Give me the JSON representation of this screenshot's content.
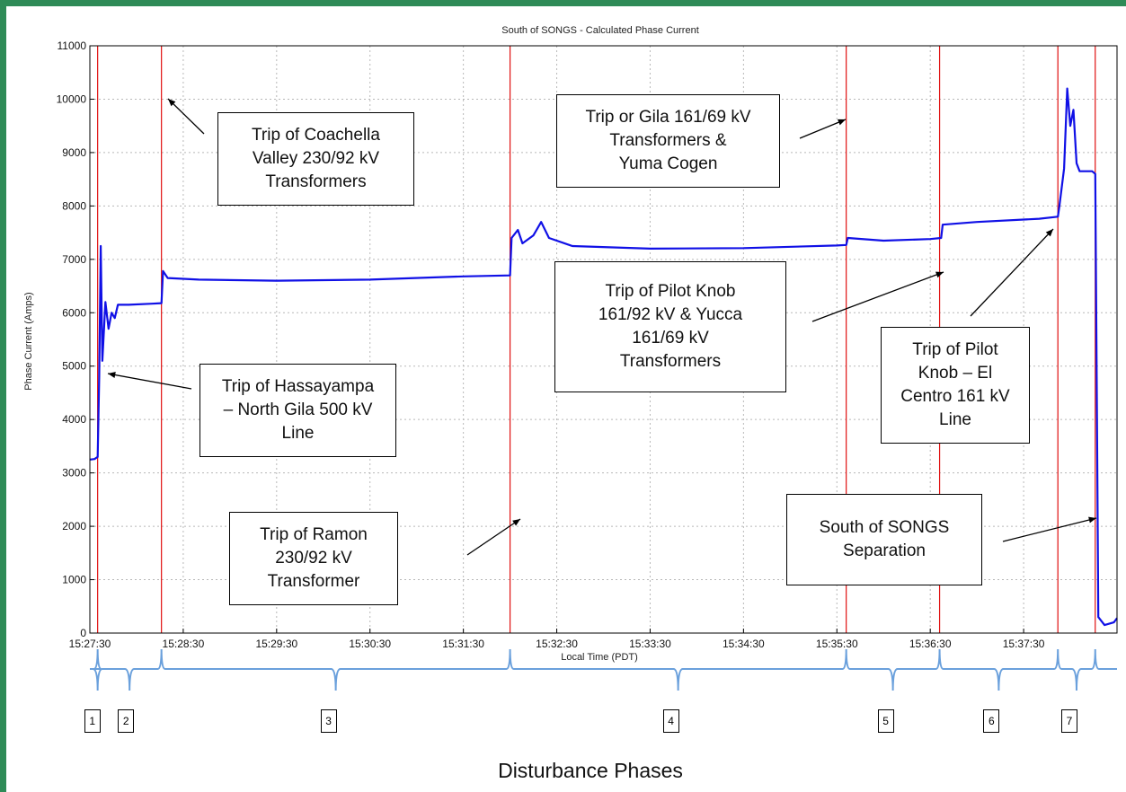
{
  "chart_data": {
    "type": "line",
    "title": "South of SONGS - Calculated Phase Current",
    "xlabel": "Local Time (PDT)",
    "ylabel": "Phase Current (Amps)",
    "x_ticks": [
      "15:27:30",
      "15:28:30",
      "15:29:30",
      "15:30:30",
      "15:31:30",
      "15:32:30",
      "15:33:30",
      "15:34:30",
      "15:35:30",
      "15:36:30",
      "15:37:30"
    ],
    "y_ticks": [
      0,
      1000,
      2000,
      3000,
      4000,
      5000,
      6000,
      7000,
      8000,
      9000,
      10000,
      11000
    ],
    "ylim": [
      0,
      11000
    ],
    "xlim": [
      "15:27:30",
      "15:38:30"
    ],
    "grid": true,
    "series": [
      {
        "color": "#1010e6",
        "points": [
          [
            "15:27:30",
            3250
          ],
          [
            "15:27:33",
            3260
          ],
          [
            "15:27:35",
            3300
          ],
          [
            "15:27:36",
            4800
          ],
          [
            "15:27:37",
            7250
          ],
          [
            "15:27:38",
            5100
          ],
          [
            "15:27:40",
            6200
          ],
          [
            "15:27:42",
            5700
          ],
          [
            "15:27:44",
            6000
          ],
          [
            "15:27:46",
            5900
          ],
          [
            "15:27:48",
            6150
          ],
          [
            "15:27:55",
            6150
          ],
          [
            "15:28:10",
            6170
          ],
          [
            "15:28:16",
            6180
          ],
          [
            "15:28:17",
            6780
          ],
          [
            "15:28:20",
            6650
          ],
          [
            "15:28:40",
            6620
          ],
          [
            "15:29:30",
            6600
          ],
          [
            "15:30:30",
            6620
          ],
          [
            "15:31:30",
            6680
          ],
          [
            "15:32:00",
            6700
          ],
          [
            "15:32:01",
            7400
          ],
          [
            "15:32:05",
            7550
          ],
          [
            "15:32:08",
            7300
          ],
          [
            "15:32:15",
            7450
          ],
          [
            "15:32:20",
            7700
          ],
          [
            "15:32:25",
            7400
          ],
          [
            "15:32:40",
            7250
          ],
          [
            "15:33:30",
            7200
          ],
          [
            "15:34:30",
            7210
          ],
          [
            "15:35:30",
            7260
          ],
          [
            "15:35:36",
            7270
          ],
          [
            "15:35:37",
            7400
          ],
          [
            "15:36:00",
            7350
          ],
          [
            "15:36:30",
            7380
          ],
          [
            "15:36:37",
            7400
          ],
          [
            "15:36:38",
            7650
          ],
          [
            "15:37:00",
            7700
          ],
          [
            "15:37:40",
            7760
          ],
          [
            "15:37:52",
            7800
          ],
          [
            "15:37:53",
            8000
          ],
          [
            "15:37:56",
            8700
          ],
          [
            "15:37:58",
            10200
          ],
          [
            "15:38:00",
            9500
          ],
          [
            "15:38:02",
            9800
          ],
          [
            "15:38:04",
            8800
          ],
          [
            "15:38:06",
            8650
          ],
          [
            "15:38:14",
            8650
          ],
          [
            "15:38:16",
            8600
          ],
          [
            "15:38:17",
            4500
          ],
          [
            "15:38:18",
            300
          ],
          [
            "15:38:22",
            150
          ],
          [
            "15:38:28",
            200
          ],
          [
            "15:38:30",
            280
          ]
        ]
      }
    ],
    "event_lines_color": "#e01010",
    "event_lines": [
      "15:27:35",
      "15:28:16",
      "15:32:00",
      "15:35:36",
      "15:36:36",
      "15:37:52",
      "15:38:16"
    ],
    "phase_labels": [
      "1",
      "2",
      "3",
      "4",
      "5",
      "6",
      "7"
    ],
    "caption": "Disturbance Phases"
  },
  "annotations": [
    {
      "text": "Trip of Coachella\nValley 230/92 kV\nTransformers"
    },
    {
      "text": "Trip or Gila 161/69 kV\nTransformers &\nYuma Cogen"
    },
    {
      "text": "Trip of Pilot Knob\n161/92 kV & Yucca\n161/69 kV\nTransformers"
    },
    {
      "text": "Trip of  Pilot\nKnob – El\nCentro 161 kV\nLine"
    },
    {
      "text": "Trip of Hassayampa\n– North Gila 500 kV\nLine"
    },
    {
      "text": "Trip of Ramon\n230/92 kV\nTransformer"
    },
    {
      "text": "South of SONGS\nSeparation"
    }
  ]
}
